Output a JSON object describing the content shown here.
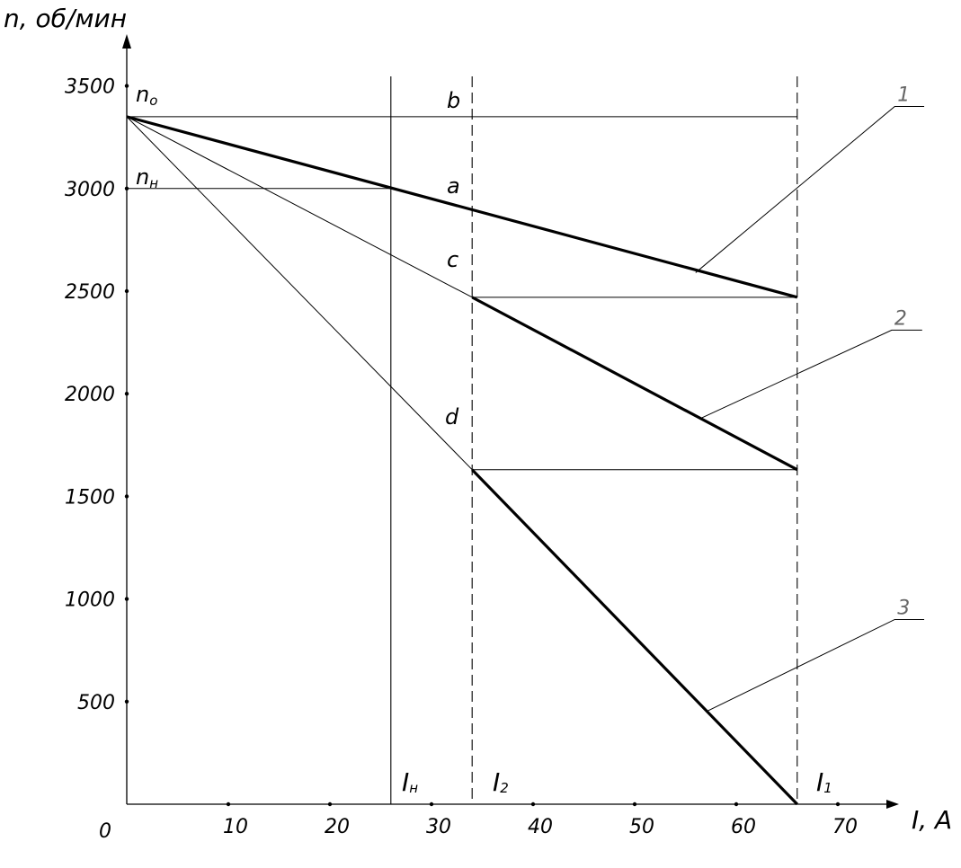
{
  "chart_data": {
    "type": "line",
    "xlabel": "I, A",
    "ylabel": "n, об/мин",
    "xlim": [
      0,
      75
    ],
    "ylim": [
      0,
      3700
    ],
    "origin_label": "0",
    "x_ticks": [
      {
        "value": 10,
        "label": "10"
      },
      {
        "value": 20,
        "label": "20"
      },
      {
        "value": 30,
        "label": "30"
      },
      {
        "value": 40,
        "label": "40"
      },
      {
        "value": 50,
        "label": "50"
      },
      {
        "value": 60,
        "label": "60"
      },
      {
        "value": 70,
        "label": "70"
      }
    ],
    "y_ticks": [
      {
        "value": 500,
        "label": "500"
      },
      {
        "value": 1000,
        "label": "1000"
      },
      {
        "value": 1500,
        "label": "1500"
      },
      {
        "value": 2000,
        "label": "2000"
      },
      {
        "value": 2500,
        "label": "2500"
      },
      {
        "value": 3000,
        "label": "3000"
      },
      {
        "value": 3500,
        "label": "3500"
      }
    ],
    "key_values": {
      "n0": 3350,
      "nn": 3000,
      "In": 26,
      "I2": 34,
      "I1": 66,
      "n_end_1": 2470,
      "n_end_2": 1630
    },
    "series": [
      {
        "name": "1",
        "style": "bold",
        "points": [
          [
            0,
            3350
          ],
          [
            66,
            2470
          ]
        ]
      },
      {
        "name": "2",
        "style": "bold",
        "points": [
          [
            34,
            2470
          ],
          [
            66,
            1630
          ]
        ]
      },
      {
        "name": "3",
        "style": "bold",
        "points": [
          [
            34,
            1630
          ],
          [
            66,
            0
          ]
        ]
      }
    ],
    "thin_lines": [
      {
        "points": [
          [
            0,
            3350
          ],
          [
            34,
            2470
          ]
        ]
      },
      {
        "points": [
          [
            0,
            3350
          ],
          [
            34,
            1630
          ]
        ]
      },
      {
        "points": [
          [
            0,
            3350
          ],
          [
            66,
            3350
          ]
        ]
      },
      {
        "points": [
          [
            0,
            3000
          ],
          [
            26,
            3000
          ]
        ]
      },
      {
        "points": [
          [
            34,
            2470
          ],
          [
            66,
            2470
          ]
        ]
      },
      {
        "points": [
          [
            34,
            1630
          ],
          [
            66,
            1630
          ]
        ]
      }
    ],
    "vertical_lines": [
      {
        "x": 26,
        "style": "solid"
      },
      {
        "x": 34,
        "style": "dashed"
      },
      {
        "x": 66,
        "style": "dashed"
      }
    ],
    "point_labels": [
      {
        "text": "a",
        "x": 32,
        "y": 3040
      },
      {
        "text": "b",
        "x": 32,
        "y": 3400
      },
      {
        "text": "c",
        "x": 32,
        "y": 2560
      },
      {
        "text": "d",
        "x": 32,
        "y": 1770
      }
    ],
    "y_level_labels": [
      {
        "main": "n",
        "sub": "o",
        "x": 1.2,
        "y": 3450
      },
      {
        "main": "n",
        "sub": "н",
        "x": 1.2,
        "y": 3060
      }
    ],
    "x_level_labels": [
      {
        "main": "I",
        "sub": "н",
        "x": 27,
        "y": 60
      },
      {
        "main": "I",
        "sub": "2",
        "x": 36,
        "y": 60
      },
      {
        "main": "I",
        "sub": "1",
        "x": 67,
        "y": 60
      }
    ],
    "curve_numbers": [
      {
        "label": "1",
        "anchor": [
          56,
          2590
        ],
        "elbow": [
          75.6,
          3400
        ],
        "end": [
          78.5,
          3400
        ]
      },
      {
        "label": "2",
        "anchor": [
          56.5,
          1880
        ],
        "elbow": [
          75.3,
          2310
        ],
        "end": [
          78.3,
          2310
        ]
      },
      {
        "label": "3",
        "anchor": [
          57,
          450
        ],
        "elbow": [
          75.6,
          900
        ],
        "end": [
          78.5,
          900
        ]
      }
    ]
  }
}
